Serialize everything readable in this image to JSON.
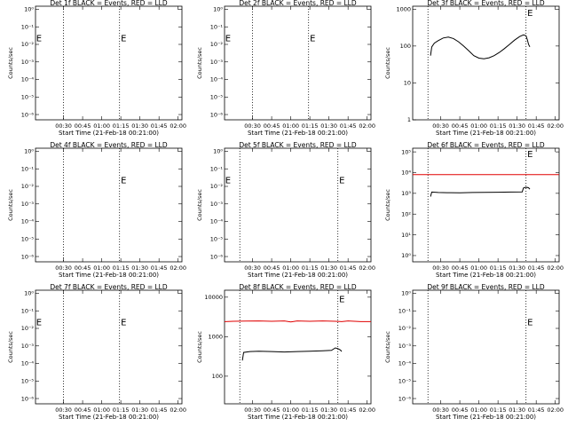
{
  "x_tick_labels": [
    "00:30",
    "00:45",
    "01:00",
    "01:15",
    "01:30",
    "01:45",
    "02:00"
  ],
  "x_label": "Start Time (21-Feb-18 00:21:00)",
  "y_label": "Counts/sec",
  "colors": {
    "events": "#000000",
    "lld": "#e00000",
    "grid": "#000000"
  },
  "chart_data": [
    {
      "type": "line",
      "title": "Det 1f BLACK = Events, RED = LLD",
      "xlim_min": [
        8,
        123
      ],
      "ylim": [
        5e-07,
        1.5
      ],
      "yscale": "log",
      "ytick_values": [
        1,
        0.1,
        0.01,
        0.001,
        0.0001,
        1e-05,
        1e-06
      ],
      "ytick_labels": [
        "10⁰",
        "10⁻¹",
        "10⁻²",
        "10⁻³",
        "10⁻⁴",
        "10⁻⁵",
        "10⁻⁶"
      ],
      "vlines_min": [
        30,
        74
      ],
      "annotations": [
        {
          "text": "E",
          "x_min": 8.5,
          "y": 0.022
        },
        {
          "text": "E",
          "x_min": 75,
          "y": 0.022
        }
      ],
      "series": []
    },
    {
      "type": "line",
      "title": "Det 2f BLACK = Events, RED = LLD",
      "xlim_min": [
        8,
        123
      ],
      "ylim": [
        5e-07,
        1.5
      ],
      "yscale": "log",
      "ytick_values": [
        1,
        0.1,
        0.01,
        0.001,
        0.0001,
        1e-05,
        1e-06
      ],
      "ytick_labels": [
        "10⁰",
        "10⁻¹",
        "10⁻²",
        "10⁻³",
        "10⁻⁴",
        "10⁻⁵",
        "10⁻⁶"
      ],
      "vlines_min": [
        30,
        74
      ],
      "annotations": [
        {
          "text": "E",
          "x_min": 8.5,
          "y": 0.022
        },
        {
          "text": "E",
          "x_min": 75,
          "y": 0.022
        }
      ],
      "series": []
    },
    {
      "type": "line",
      "title": "Det 3f BLACK = Events, RED = LLD",
      "xlim_min": [
        8,
        123
      ],
      "ylim": [
        1,
        1200
      ],
      "yscale": "log",
      "ytick_values": [
        1000,
        100,
        10,
        1
      ],
      "ytick_labels": [
        "1000",
        "100",
        "10",
        "1"
      ],
      "vlines_min": [
        20,
        97
      ],
      "annotations": [
        {
          "text": "E",
          "x_min": 98,
          "y": 800
        }
      ],
      "series": [
        {
          "role": "events",
          "x": [
            22,
            23,
            25,
            28,
            32,
            36,
            40,
            44,
            48,
            52,
            56,
            60,
            64,
            68,
            72,
            76,
            80,
            84,
            88,
            92,
            95,
            97,
            98,
            99,
            100
          ],
          "y": [
            55,
            95,
            120,
            140,
            165,
            175,
            160,
            130,
            100,
            75,
            55,
            47,
            45,
            48,
            55,
            67,
            85,
            110,
            145,
            180,
            200,
            190,
            150,
            110,
            95
          ]
        }
      ]
    },
    {
      "type": "line",
      "title": "Det 4f BLACK = Events, RED = LLD",
      "xlim_min": [
        8,
        123
      ],
      "ylim": [
        5e-07,
        1.5
      ],
      "yscale": "log",
      "ytick_values": [
        1,
        0.1,
        0.01,
        0.001,
        0.0001,
        1e-05,
        1e-06
      ],
      "ytick_labels": [
        "10⁰",
        "10⁻¹",
        "10⁻²",
        "10⁻³",
        "10⁻⁴",
        "10⁻⁵",
        "10⁻⁶"
      ],
      "vlines_min": [
        30,
        74
      ],
      "annotations": [
        {
          "text": "E",
          "x_min": 75,
          "y": 0.022
        }
      ],
      "series": []
    },
    {
      "type": "line",
      "title": "Det 5f BLACK = Events, RED = LLD",
      "xlim_min": [
        8,
        123
      ],
      "ylim": [
        5e-07,
        1.5
      ],
      "yscale": "log",
      "ytick_values": [
        1,
        0.1,
        0.01,
        0.001,
        0.0001,
        1e-05,
        1e-06
      ],
      "ytick_labels": [
        "10⁰",
        "10⁻¹",
        "10⁻²",
        "10⁻³",
        "10⁻⁴",
        "10⁻⁵",
        "10⁻⁶"
      ],
      "vlines_min": [
        20,
        97
      ],
      "annotations": [
        {
          "text": "E",
          "x_min": 8.5,
          "y": 0.022
        },
        {
          "text": "E",
          "x_min": 98,
          "y": 0.022
        }
      ],
      "series": []
    },
    {
      "type": "line",
      "title": "Det 6f BLACK = Events, RED = LLD",
      "xlim_min": [
        8,
        123
      ],
      "ylim": [
        0.5,
        150000
      ],
      "yscale": "log",
      "ytick_values": [
        100000,
        10000,
        1000,
        100,
        10,
        1
      ],
      "ytick_labels": [
        "10⁵",
        "10⁴",
        "10³",
        "10²",
        "10¹",
        "10⁰"
      ],
      "vlines_min": [
        20,
        97
      ],
      "annotations": [
        {
          "text": "E",
          "x_min": 98,
          "y": 80000
        }
      ],
      "series": [
        {
          "role": "lld",
          "x": [
            8,
            123
          ],
          "y": [
            8000,
            8000
          ]
        },
        {
          "role": "events",
          "x": [
            22,
            23,
            28,
            35,
            45,
            55,
            65,
            75,
            85,
            94,
            95,
            96,
            98,
            99,
            100
          ],
          "y": [
            700,
            1150,
            1100,
            1080,
            1070,
            1100,
            1120,
            1130,
            1150,
            1180,
            1800,
            1900,
            1950,
            1850,
            1600
          ]
        }
      ]
    },
    {
      "type": "line",
      "title": "Det 7f BLACK = Events, RED = LLD",
      "xlim_min": [
        8,
        123
      ],
      "ylim": [
        5e-07,
        1.5
      ],
      "yscale": "log",
      "ytick_values": [
        1,
        0.1,
        0.01,
        0.001,
        0.0001,
        1e-05,
        1e-06
      ],
      "ytick_labels": [
        "10⁰",
        "10⁻¹",
        "10⁻²",
        "10⁻³",
        "10⁻⁴",
        "10⁻⁵",
        "10⁻⁶"
      ],
      "vlines_min": [
        30,
        74
      ],
      "annotations": [
        {
          "text": "E",
          "x_min": 8.5,
          "y": 0.022
        },
        {
          "text": "E",
          "x_min": 75,
          "y": 0.022
        }
      ],
      "series": []
    },
    {
      "type": "line",
      "title": "Det 8f BLACK = Events, RED = LLD",
      "xlim_min": [
        8,
        123
      ],
      "ylim": [
        20,
        15000
      ],
      "yscale": "log",
      "ytick_values": [
        10000,
        1000,
        100
      ],
      "ytick_labels": [
        "10000",
        "1000",
        "100"
      ],
      "vlines_min": [
        20,
        97
      ],
      "annotations": [
        {
          "text": "E",
          "x_min": 98,
          "y": 9000
        }
      ],
      "series": [
        {
          "role": "lld",
          "x": [
            8,
            15,
            25,
            35,
            45,
            55,
            60,
            65,
            75,
            85,
            95,
            100,
            105,
            110,
            115,
            123
          ],
          "y": [
            2400,
            2450,
            2480,
            2500,
            2450,
            2500,
            2350,
            2500,
            2450,
            2500,
            2450,
            2400,
            2500,
            2450,
            2400,
            2400
          ]
        },
        {
          "role": "events",
          "x": [
            22,
            23,
            28,
            35,
            45,
            55,
            65,
            75,
            85,
            92,
            95,
            97,
            99,
            100
          ],
          "y": [
            250,
            400,
            420,
            430,
            420,
            410,
            420,
            430,
            440,
            450,
            520,
            500,
            460,
            420
          ]
        }
      ]
    },
    {
      "type": "line",
      "title": "Det 9f BLACK = Events, RED = LLD",
      "xlim_min": [
        8,
        123
      ],
      "ylim": [
        5e-07,
        1.5
      ],
      "yscale": "log",
      "ytick_values": [
        1,
        0.1,
        0.01,
        0.001,
        0.0001,
        1e-05,
        1e-06
      ],
      "ytick_labels": [
        "10⁰",
        "10⁻¹",
        "10⁻²",
        "10⁻³",
        "10⁻⁴",
        "10⁻⁵",
        "10⁻⁶"
      ],
      "vlines_min": [
        20,
        97
      ],
      "annotations": [
        {
          "text": "E",
          "x_min": 98,
          "y": 0.022
        }
      ],
      "series": []
    }
  ]
}
